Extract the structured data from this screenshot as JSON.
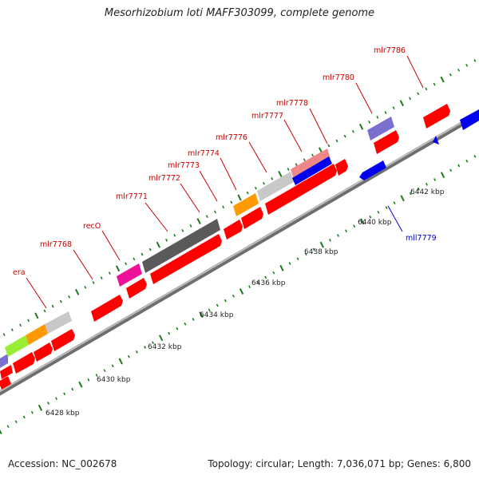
{
  "header": {
    "title": "Mesorhizobium loti MAFF303099, complete genome"
  },
  "footer": {
    "accession": "Accession: NC_002678",
    "topology": "Topology: circular; Length: 7,036,071 bp; Genes: 6,800"
  },
  "map": {
    "scale_labels": [
      "6428 kbp",
      "6430 kbp",
      "6432 kbp",
      "6434 kbp",
      "6436 kbp",
      "6438 kbp",
      "6440 kbp",
      "6442 kbp"
    ],
    "gene_labels": [
      "era",
      "mlr7768",
      "recO",
      "mlr7771",
      "mlr7772",
      "mlr7773",
      "mlr7774",
      "mlr7776",
      "mlr7777",
      "mlr7778",
      "mlr7780",
      "mlr7786",
      "mll7779"
    ],
    "colors": {
      "forward_gene": "#ff0000",
      "reverse_gene": "#0000ff",
      "backbone": "#888888",
      "tick": "#1a7a1a",
      "label_forward": "#cc0000",
      "label_reverse": "#0000cc"
    }
  }
}
